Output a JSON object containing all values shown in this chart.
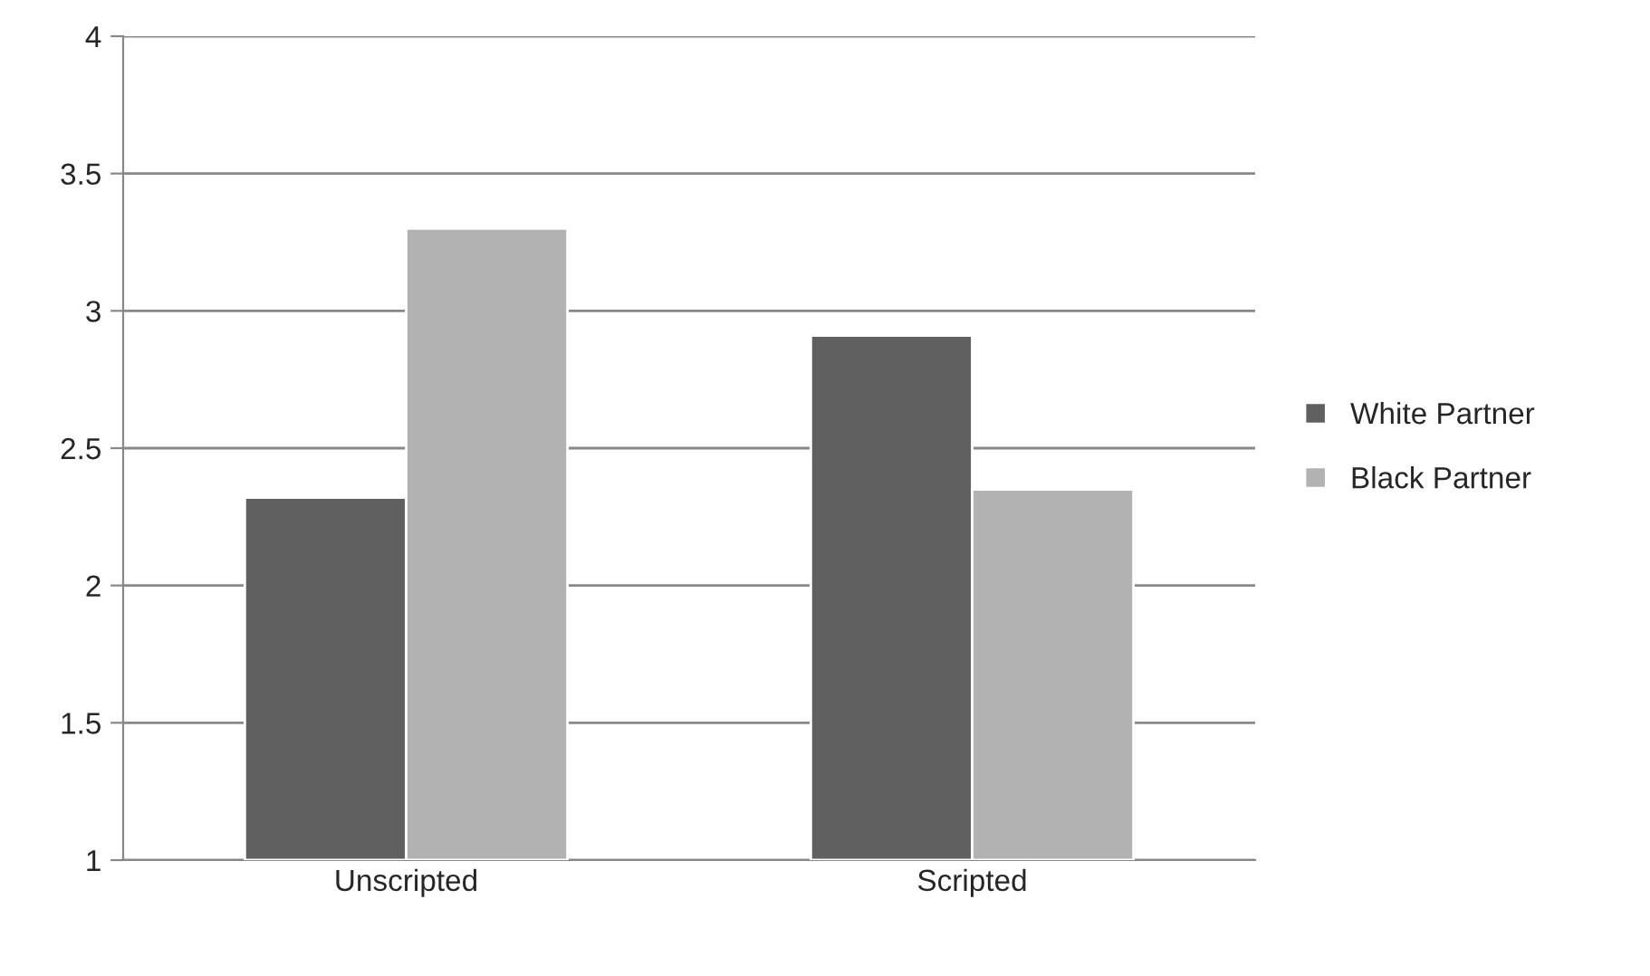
{
  "chart_data": {
    "type": "bar",
    "categories": [
      "Unscripted",
      "Scripted"
    ],
    "series": [
      {
        "name": "White Partner",
        "color": "#606060",
        "values": [
          2.32,
          2.91
        ]
      },
      {
        "name": "Black Partner",
        "color": "#b2b2b2",
        "values": [
          3.3,
          2.35
        ]
      }
    ],
    "ylim": [
      1,
      4
    ],
    "yticks": [
      1,
      1.5,
      2,
      2.5,
      3,
      3.5,
      4
    ],
    "grid": "y",
    "legend": "right"
  }
}
